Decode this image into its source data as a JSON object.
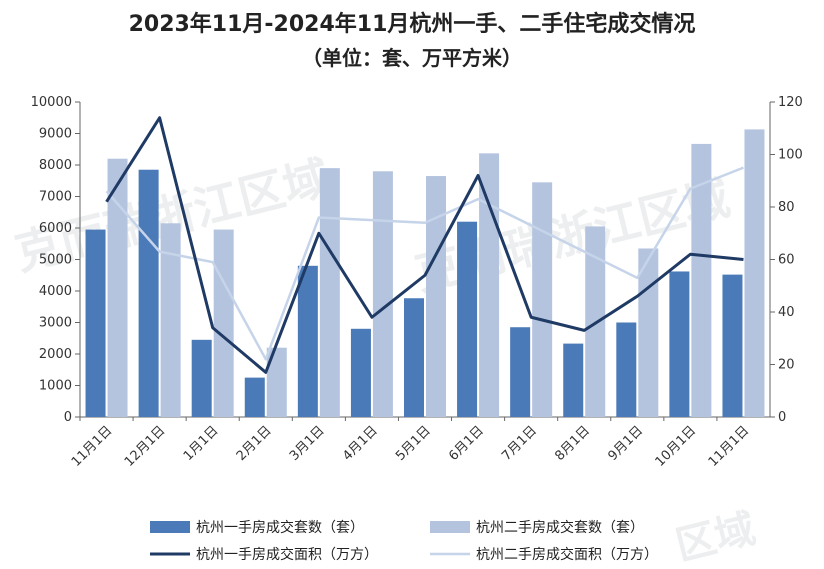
{
  "chart_data": {
    "type": "bar",
    "title": "2023年11月-2024年11月杭州一手、二手住宅成交情况",
    "subtitle": "（单位：套、万平方米）",
    "categories": [
      "11月1日",
      "12月1日",
      "1月1日",
      "2月1日",
      "3月1日",
      "4月1日",
      "5月1日",
      "6月1日",
      "7月1日",
      "8月1日",
      "9月1日",
      "10月1日",
      "11月1日"
    ],
    "y_left": {
      "min": 0,
      "max": 10000,
      "step": 1000,
      "ticks": [
        "0",
        "1000",
        "2000",
        "3000",
        "4000",
        "5000",
        "6000",
        "7000",
        "8000",
        "9000",
        "10000"
      ]
    },
    "y_right": {
      "min": 0,
      "max": 120,
      "step": 20,
      "ticks": [
        "0",
        "20",
        "40",
        "60",
        "80",
        "100",
        "120"
      ]
    },
    "series": [
      {
        "name": "杭州一手房成交套数（套）",
        "type": "bar",
        "axis": "left",
        "color": "#4a7ab8",
        "values": [
          5950,
          7850,
          2450,
          1250,
          4800,
          2800,
          3770,
          6200,
          2850,
          2330,
          3000,
          4620,
          4520
        ]
      },
      {
        "name": "杭州二手房成交套数（套）",
        "type": "bar",
        "axis": "left",
        "color": "#b4c4df",
        "values": [
          8200,
          6150,
          5950,
          2200,
          7900,
          7800,
          7650,
          8370,
          7450,
          6050,
          5350,
          8670,
          9130
        ]
      },
      {
        "name": "杭州一手房成交面积（万方）",
        "type": "line",
        "axis": "right",
        "color": "#1f3a64",
        "values": [
          82,
          114,
          34,
          17,
          70,
          38,
          54,
          92,
          38,
          33,
          46,
          62,
          60
        ]
      },
      {
        "name": "杭州二手房成交面积（万方）",
        "type": "line",
        "axis": "right",
        "color": "#c6d4ea",
        "values": [
          86,
          63,
          59,
          22,
          76,
          75,
          74,
          83,
          73,
          63,
          53,
          87,
          95
        ]
      }
    ],
    "grid": false,
    "legend_position": "bottom"
  },
  "watermarks": [
    "克而瑞浙江区域",
    "克而瑞浙江区域",
    "区域"
  ]
}
